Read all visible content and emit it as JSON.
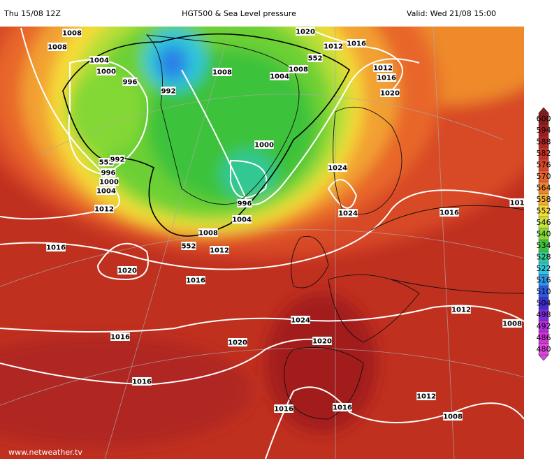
{
  "header": {
    "run": "Thu 15/08 12Z",
    "title": "HGT500 & Sea Level pressure",
    "valid": "Valid: Wed 21/08 15:00"
  },
  "map": {
    "pressure_labels": [
      "1008",
      "1008",
      "1004",
      "1000",
      "996",
      "992",
      "1008",
      "1004",
      "1008",
      "1020",
      "552",
      "1012",
      "1016",
      "1012",
      "1016",
      "1020",
      "552",
      "992",
      "996",
      "1000",
      "1004",
      "1012",
      "1000",
      "1024",
      "1024",
      "1016",
      "101",
      "996",
      "1004",
      "1008",
      "552",
      "1012",
      "1016",
      "1020",
      "1016",
      "1024",
      "1016",
      "1020",
      "1020",
      "1012",
      "1008",
      "1016",
      "1016",
      "1016",
      "1012",
      "1008"
    ],
    "credit": "www.netweather.tv"
  },
  "colorbar": {
    "labels": [
      "600",
      "594",
      "588",
      "582",
      "576",
      "570",
      "564",
      "558",
      "552",
      "546",
      "540",
      "534",
      "528",
      "522",
      "516",
      "510",
      "504",
      "498",
      "492",
      "486",
      "480"
    ],
    "colors": [
      "#8b1a1a",
      "#a11d1c",
      "#b52421",
      "#c83226",
      "#d6452a",
      "#e4602c",
      "#ee852c",
      "#f4ac30",
      "#f7dc38",
      "#c6e23a",
      "#84d834",
      "#3ec23a",
      "#30c894",
      "#2ec6dc",
      "#2a94e6",
      "#2a58e0",
      "#3c2ed0",
      "#7a2ad8",
      "#b42ae0",
      "#d432d8",
      "#e044e0"
    ]
  }
}
